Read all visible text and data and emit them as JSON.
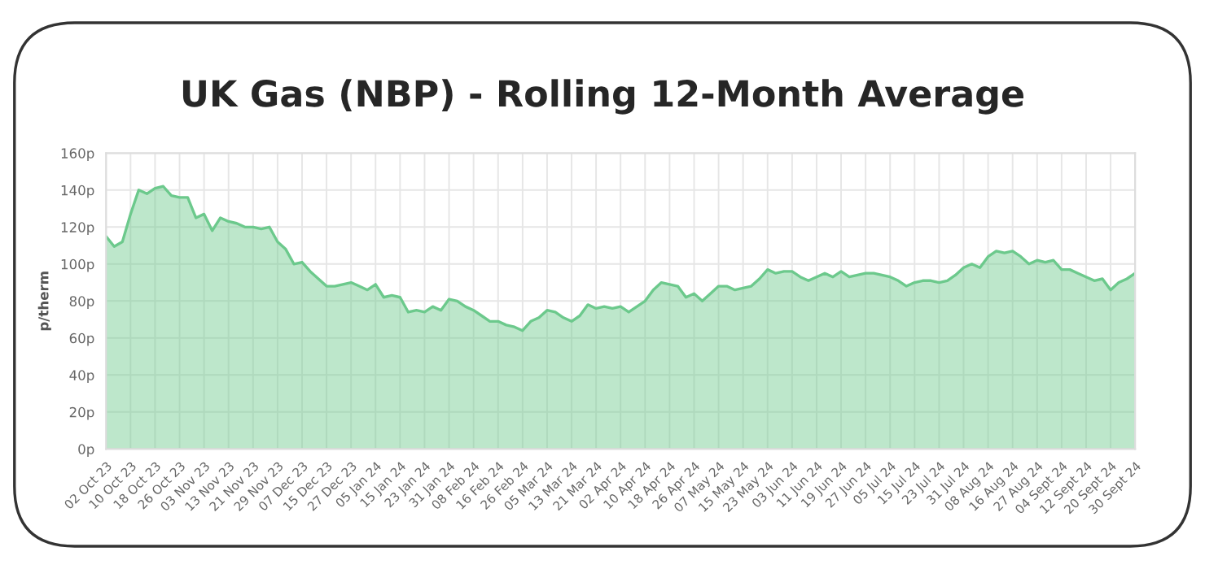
{
  "chart_data": {
    "type": "area",
    "title": "UK Gas (NBP) - Rolling 12-Month Average",
    "ylabel": "p/therm",
    "categories": [
      "02 Oct 23",
      null,
      null,
      "10 Oct 23",
      null,
      null,
      "18 Oct 23",
      null,
      null,
      "26 Oct 23",
      null,
      null,
      "03 Nov 23",
      null,
      null,
      "13 Nov 23",
      null,
      null,
      "21 Nov 23",
      null,
      null,
      "29 Nov 23",
      null,
      null,
      "07 Dec 23",
      null,
      null,
      "15 Dec 23",
      null,
      null,
      "27 Dec 23",
      null,
      null,
      "05 Jan 24",
      null,
      null,
      "15 Jan 24",
      null,
      null,
      "23 Jan 24",
      null,
      null,
      "31 Jan 24",
      null,
      null,
      "08 Feb 24",
      null,
      null,
      "16 Feb 24",
      null,
      null,
      "26 Feb 24",
      null,
      null,
      "05 Mar 24",
      null,
      null,
      "13 Mar 24",
      null,
      null,
      "21 Mar 24",
      null,
      null,
      "02 Apr 24",
      null,
      null,
      "10 Apr 24",
      null,
      null,
      "18 Apr 24",
      null,
      null,
      "26 Apr 24",
      null,
      null,
      "07 May 24",
      null,
      null,
      "15 May 24",
      null,
      null,
      "23 May 24",
      null,
      null,
      "03 Jun 24",
      null,
      null,
      "11 Jun 24",
      null,
      null,
      "19 Jun 24",
      null,
      null,
      "27 Jun 24",
      null,
      null,
      "05 Jul 24",
      null,
      null,
      "15 Jul 24",
      null,
      null,
      "23 Jul 24",
      null,
      null,
      "31 Jul 24",
      null,
      null,
      "08 Aug 24",
      null,
      null,
      "16 Aug 24",
      null,
      null,
      "27 Aug 24",
      null,
      null,
      "04 Sept 24",
      null,
      null,
      "12 Sept 24",
      null,
      null,
      "20 Sept 24",
      null,
      null,
      "30 Sept 24"
    ],
    "series": [
      {
        "color": "#6cc98c",
        "values": [
          115,
          109.5,
          112,
          127,
          140,
          138,
          141,
          142,
          137,
          136,
          136,
          125,
          127,
          118,
          125,
          123,
          122,
          120,
          120,
          119,
          120,
          112,
          108,
          100,
          101,
          96,
          92,
          88,
          88,
          89,
          90,
          88,
          86,
          89,
          82,
          83,
          82,
          74,
          75,
          74,
          77,
          75,
          81,
          80,
          77,
          75,
          72,
          69,
          69,
          67,
          66,
          64,
          69,
          71,
          75,
          74,
          71,
          69,
          72,
          78,
          76,
          77,
          76,
          77,
          74,
          77,
          80,
          86,
          90,
          89,
          88,
          82,
          84,
          80,
          84,
          88,
          88,
          86,
          87,
          88,
          92,
          97,
          95,
          96,
          96,
          93,
          91,
          93,
          95,
          93,
          96,
          93,
          94,
          95,
          95,
          94,
          93,
          91,
          88,
          90,
          91,
          91,
          90,
          91,
          94,
          98,
          100,
          98,
          104,
          107,
          106,
          107,
          104,
          100,
          102,
          101,
          102,
          97,
          97,
          95,
          93,
          91,
          92,
          86,
          90,
          92,
          95
        ]
      }
    ],
    "ylim": [
      0,
      160
    ],
    "yticks": [
      {
        "value": 0,
        "label": "0p"
      },
      {
        "value": 20,
        "label": "20p"
      },
      {
        "value": 40,
        "label": "40p"
      },
      {
        "value": 60,
        "label": "60p"
      },
      {
        "value": 80,
        "label": "80p"
      },
      {
        "value": 100,
        "label": "100p"
      },
      {
        "value": 120,
        "label": "120p"
      },
      {
        "value": 140,
        "label": "140p"
      },
      {
        "value": 160,
        "label": "160p"
      }
    ],
    "grid": true
  }
}
